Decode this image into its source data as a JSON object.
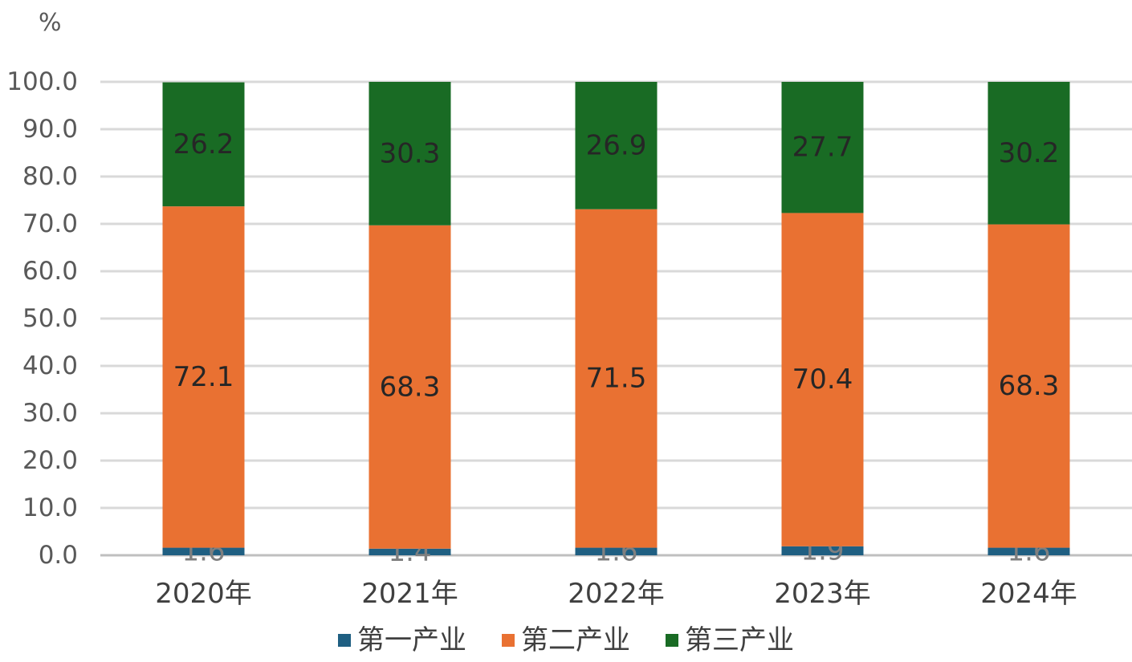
{
  "chart_data": {
    "type": "bar",
    "stacked": true,
    "unit": "%",
    "categories": [
      "2020年",
      "2021年",
      "2022年",
      "2023年",
      "2024年"
    ],
    "series": [
      {
        "name": "第一产业",
        "color": "#1F5F82",
        "values": [
          1.6,
          1.4,
          1.6,
          1.9,
          1.6
        ]
      },
      {
        "name": "第二产业",
        "color": "#E97132",
        "values": [
          72.1,
          68.3,
          71.5,
          70.4,
          68.3
        ]
      },
      {
        "name": "第三产业",
        "color": "#196B24",
        "values": [
          26.2,
          30.3,
          26.9,
          27.7,
          30.2
        ]
      }
    ],
    "ylim": [
      0,
      100
    ],
    "yticks": [
      "0.0",
      "10.0",
      "20.0",
      "30.0",
      "40.0",
      "50.0",
      "60.0",
      "70.0",
      "80.0",
      "90.0",
      "100.0"
    ],
    "grid": true,
    "legend_position": "bottom"
  }
}
